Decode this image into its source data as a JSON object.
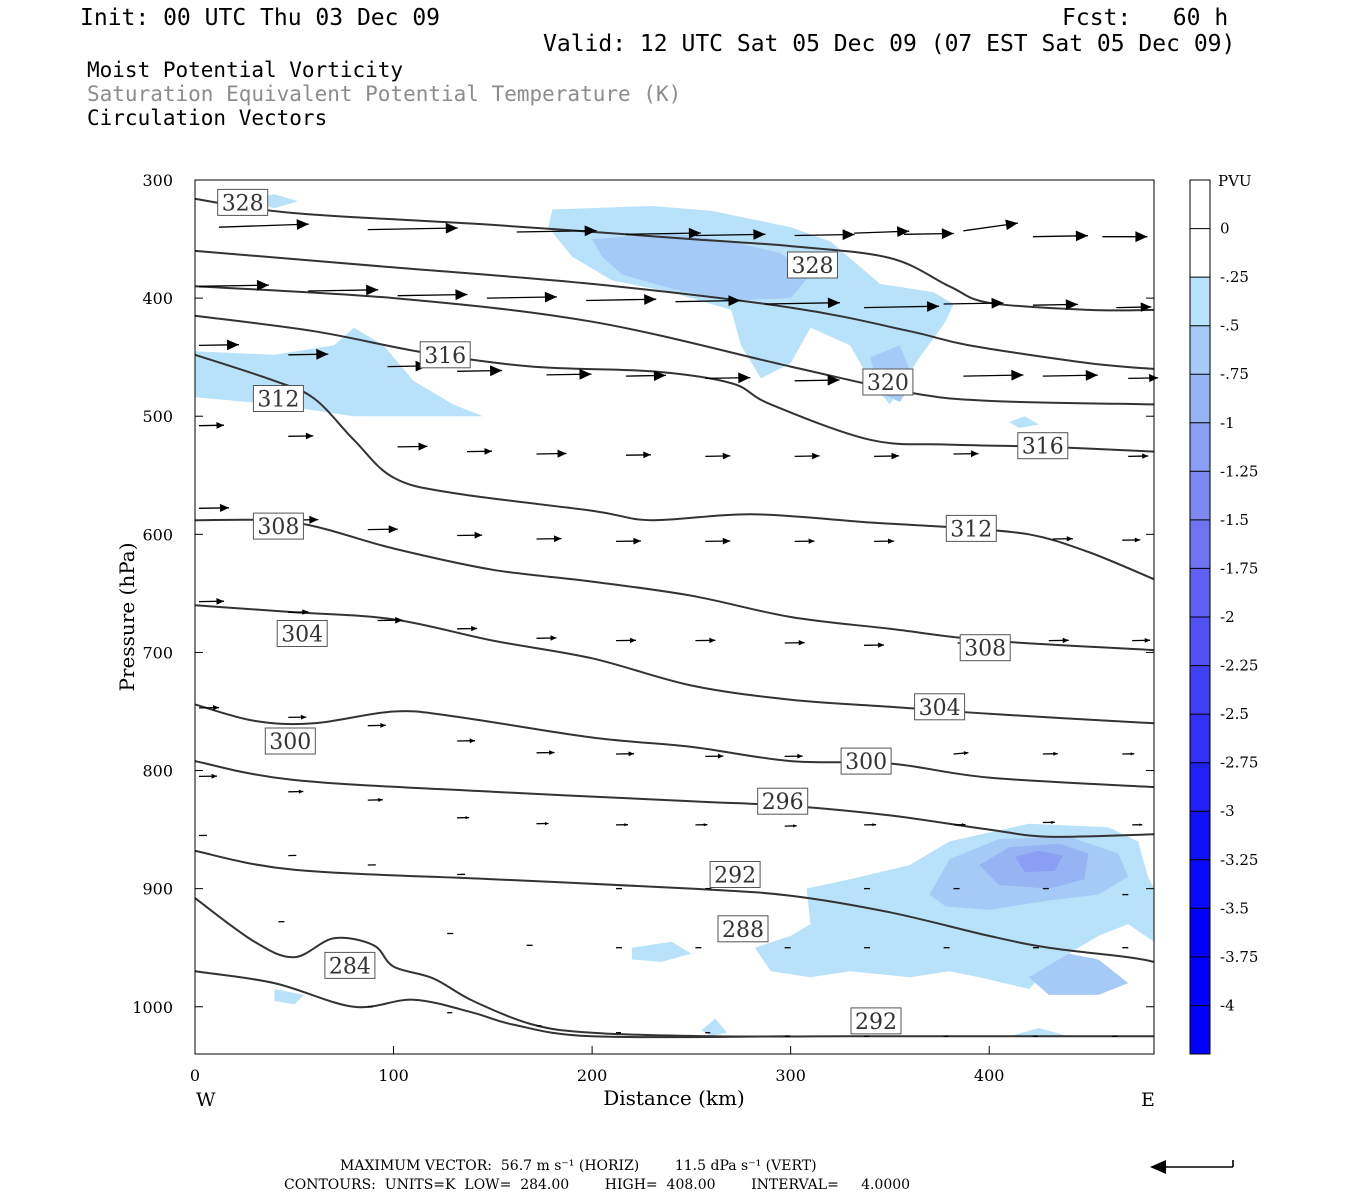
{
  "header": {
    "init": "Init: 00 UTC Thu 03 Dec 09",
    "fcst": "Fcst:   60 h",
    "valid": "Valid: 12 UTC Sat 05 Dec 09 (07 EST Sat 05 Dec 09)"
  },
  "titles": {
    "line1": "Moist Potential Vorticity",
    "line2": "Saturation Equivalent Potential Temperature (K)",
    "line3": "Circulation Vectors"
  },
  "footer": {
    "max_vector_line": "MAXIMUM VECTOR:  56.7 m s⁻¹ (HORIZ)        11.5 dPa s⁻¹ (VERT)",
    "contours_line": "CONTOURS:  UNITS=K  LOW=  284.00        HIGH=  408.00        INTERVAL=     4.0000"
  },
  "colors": {
    "contour": "#333333",
    "shade_fills": [
      "#b8e2fa",
      "#a6caf6",
      "#96b4f4",
      "#8a9ef3"
    ],
    "colorbar": [
      "#ffffff",
      "#b8e2fa",
      "#a6caf6",
      "#96b4f4",
      "#8a9ef3",
      "#7d89f2",
      "#7074f2",
      "#6060f3",
      "#5050f4",
      "#4040f5",
      "#3030f6",
      "#2020f8",
      "#1010fa",
      "#0808fc",
      "#0000ff",
      "#0000ff",
      "#0000ff"
    ]
  },
  "chart_data": {
    "type": "cross-section (contour + shaded + vectors)",
    "xlabel": "Distance (km)",
    "ylabel": "Pressure (hPa)",
    "xlim": [
      0,
      483
    ],
    "ylim": [
      1040,
      300
    ],
    "x_ticks": [
      0,
      100,
      200,
      300,
      400
    ],
    "y_ticks": [
      300,
      400,
      500,
      600,
      700,
      800,
      900,
      1000
    ],
    "left_end_label": "W",
    "right_end_label": "E",
    "colorbar": {
      "unit_label": "PVU",
      "tick_labels": [
        "0",
        "-.25",
        "-.5",
        "-.75",
        "-1",
        "-1.25",
        "-1.5",
        "-1.75",
        "-2",
        "-2.25",
        "-2.5",
        "-2.75",
        "-3",
        "-3.25",
        "-3.5",
        "-3.75",
        "-4"
      ]
    },
    "contours": [
      {
        "value": 328,
        "label": "328",
        "points": [
          [
            0,
            316
          ],
          [
            50,
            328
          ],
          [
            150,
            338
          ],
          [
            250,
            350
          ],
          [
            300,
            356
          ],
          [
            350,
            366
          ],
          [
            380,
            390
          ],
          [
            400,
            404
          ],
          [
            450,
            410
          ],
          [
            483,
            410
          ]
        ]
      },
      {
        "value": 324,
        "label": null,
        "points": [
          [
            0,
            360
          ],
          [
            100,
            374
          ],
          [
            200,
            388
          ],
          [
            300,
            408
          ],
          [
            360,
            428
          ],
          [
            390,
            440
          ],
          [
            450,
            455
          ],
          [
            483,
            460
          ]
        ]
      },
      {
        "value": 320,
        "label": "320",
        "points": [
          [
            0,
            390
          ],
          [
            100,
            400
          ],
          [
            200,
            420
          ],
          [
            300,
            458
          ],
          [
            360,
            480
          ],
          [
            400,
            487
          ],
          [
            483,
            490
          ]
        ]
      },
      {
        "value": 316,
        "label": "316",
        "points": [
          [
            0,
            415
          ],
          [
            60,
            428
          ],
          [
            115,
            446
          ],
          [
            170,
            458
          ],
          [
            230,
            462
          ],
          [
            270,
            472
          ],
          [
            290,
            490
          ],
          [
            340,
            520
          ],
          [
            380,
            524
          ],
          [
            430,
            526
          ],
          [
            483,
            530
          ]
        ]
      },
      {
        "value": 312,
        "label": "312",
        "points": [
          [
            0,
            448
          ],
          [
            40,
            470
          ],
          [
            60,
            485
          ],
          [
            80,
            520
          ],
          [
            100,
            552
          ],
          [
            130,
            565
          ],
          [
            200,
            580
          ],
          [
            230,
            588
          ],
          [
            280,
            583
          ],
          [
            340,
            590
          ],
          [
            380,
            594
          ],
          [
            420,
            600
          ],
          [
            450,
            615
          ],
          [
            483,
            638
          ]
        ]
      },
      {
        "value": 308,
        "label": "308",
        "points": [
          [
            0,
            588
          ],
          [
            50,
            590
          ],
          [
            100,
            612
          ],
          [
            150,
            630
          ],
          [
            200,
            640
          ],
          [
            250,
            652
          ],
          [
            300,
            670
          ],
          [
            350,
            680
          ],
          [
            400,
            690
          ],
          [
            483,
            698
          ]
        ]
      },
      {
        "value": 304,
        "label": "304",
        "points": [
          [
            0,
            660
          ],
          [
            50,
            666
          ],
          [
            100,
            672
          ],
          [
            150,
            690
          ],
          [
            200,
            705
          ],
          [
            250,
            728
          ],
          [
            300,
            740
          ],
          [
            350,
            746
          ],
          [
            400,
            752
          ],
          [
            483,
            760
          ]
        ]
      },
      {
        "value": 300,
        "label": "300",
        "points": [
          [
            0,
            744
          ],
          [
            30,
            758
          ],
          [
            60,
            760
          ],
          [
            100,
            750
          ],
          [
            130,
            754
          ],
          [
            200,
            772
          ],
          [
            250,
            780
          ],
          [
            300,
            792
          ],
          [
            350,
            794
          ],
          [
            400,
            806
          ],
          [
            483,
            814
          ]
        ]
      },
      {
        "value": 296,
        "label": "296",
        "points": [
          [
            0,
            792
          ],
          [
            50,
            808
          ],
          [
            150,
            818
          ],
          [
            250,
            826
          ],
          [
            300,
            830
          ],
          [
            350,
            838
          ],
          [
            400,
            850
          ],
          [
            430,
            856
          ],
          [
            483,
            854
          ]
        ]
      },
      {
        "value": 292,
        "label": "292",
        "points": [
          [
            0,
            868
          ],
          [
            50,
            884
          ],
          [
            150,
            892
          ],
          [
            250,
            900
          ],
          [
            300,
            906
          ],
          [
            350,
            920
          ],
          [
            400,
            940
          ],
          [
            430,
            950
          ],
          [
            470,
            958
          ],
          [
            483,
            962
          ]
        ]
      },
      {
        "value": 288,
        "label": "288",
        "points": [
          [
            0,
            908
          ],
          [
            30,
            945
          ],
          [
            50,
            958
          ],
          [
            70,
            942
          ],
          [
            90,
            948
          ],
          [
            100,
            966
          ],
          [
            120,
            976
          ],
          [
            140,
            995
          ],
          [
            170,
            1015
          ],
          [
            200,
            1022
          ],
          [
            260,
            1025
          ],
          [
            330,
            1025
          ],
          [
            420,
            1025
          ],
          [
            483,
            1025
          ]
        ]
      },
      {
        "value": 284,
        "label": "284",
        "points": [
          [
            0,
            970
          ],
          [
            40,
            980
          ],
          [
            80,
            1000
          ],
          [
            110,
            994
          ],
          [
            140,
            1005
          ],
          [
            160,
            1015
          ],
          [
            200,
            1025
          ],
          [
            300,
            1025
          ]
        ]
      }
    ],
    "pv_shading_bands": [
      "-0.25 to -0.5",
      "-0.5 to -0.75",
      "-0.75 to -1",
      "-1 to -1.25"
    ],
    "vector_scale": {
      "max_horizontal": 56.7,
      "horizontal_units": "m s-1",
      "max_vertical": 11.5,
      "vertical_units": "dPa s-1"
    },
    "contour_params": {
      "units": "K",
      "low": 284.0,
      "high": 408.0,
      "interval": 4.0
    }
  }
}
